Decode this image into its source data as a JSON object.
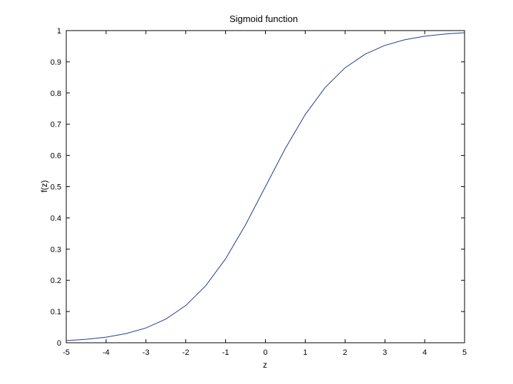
{
  "chart_data": {
    "type": "line",
    "title": "Sigmoid function",
    "xlabel": "z",
    "ylabel": "f(z)",
    "xlim": [
      -5,
      5
    ],
    "ylim": [
      0,
      1
    ],
    "x_ticks": [
      -5,
      -4,
      -3,
      -2,
      -1,
      0,
      1,
      2,
      3,
      4,
      5
    ],
    "y_ticks": [
      0,
      0.1,
      0.2,
      0.3,
      0.4,
      0.5,
      0.6,
      0.7,
      0.8,
      0.9,
      1
    ],
    "x_tick_labels": [
      "-5",
      "-4",
      "-3",
      "-2",
      "-1",
      "0",
      "1",
      "2",
      "3",
      "4",
      "5"
    ],
    "y_tick_labels": [
      "0",
      "0.1",
      "0.2",
      "0.3",
      "0.4",
      "0.5",
      "0.6",
      "0.7",
      "0.8",
      "0.9",
      "1"
    ],
    "grid": false,
    "series": [
      {
        "color": "#1f3a93",
        "x": [
          -5,
          -4.5,
          -4,
          -3.5,
          -3,
          -2.5,
          -2,
          -1.5,
          -1,
          -0.5,
          0,
          0.5,
          1,
          1.5,
          2,
          2.5,
          3,
          3.5,
          4,
          4.5,
          5
        ],
        "values": [
          0.0067,
          0.011,
          0.018,
          0.0293,
          0.0474,
          0.0759,
          0.1192,
          0.1824,
          0.2689,
          0.3775,
          0.5,
          0.6225,
          0.7311,
          0.8176,
          0.8808,
          0.9241,
          0.9526,
          0.9707,
          0.982,
          0.989,
          0.9933
        ]
      }
    ]
  }
}
